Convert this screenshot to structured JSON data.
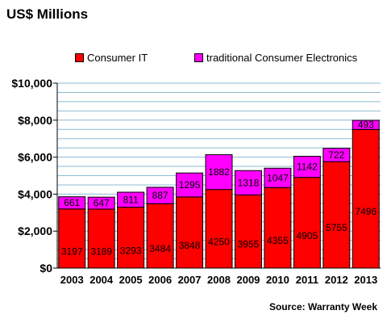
{
  "header": {
    "title": "US$ Millions"
  },
  "legend": [
    {
      "label": "Consumer IT",
      "color": "#ff0000"
    },
    {
      "label": "traditional Consumer Electronics",
      "color": "#ff00ff"
    }
  ],
  "source": "Source: Warranty Week",
  "chart_data": {
    "type": "bar",
    "stacked": true,
    "title": "US$ Millions",
    "xlabel": "",
    "ylabel": "",
    "categories": [
      "2003",
      "2004",
      "2005",
      "2006",
      "2007",
      "2008",
      "2009",
      "2010",
      "2011",
      "2012",
      "2013"
    ],
    "series": [
      {
        "name": "Consumer IT",
        "color": "#ff0000",
        "values": [
          3197,
          3189,
          3293,
          3484,
          3848,
          4250,
          3955,
          4355,
          4905,
          5755,
          7496
        ]
      },
      {
        "name": "traditional Consumer Electronics",
        "color": "#ff00ff",
        "values": [
          661,
          647,
          811,
          887,
          1295,
          1882,
          1318,
          1047,
          1142,
          722,
          493
        ]
      }
    ],
    "ylim": [
      0,
      10000
    ],
    "yticks": [
      0,
      2000,
      4000,
      6000,
      8000,
      10000
    ],
    "ytick_labels": [
      "$0",
      "$2,000",
      "$4,000",
      "$6,000",
      "$8,000",
      "$10,000"
    ],
    "grid": true,
    "legend_position": "top"
  }
}
